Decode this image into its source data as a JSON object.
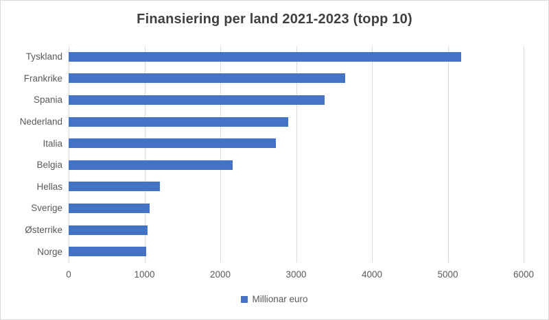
{
  "window": {
    "background": "#ffffff",
    "border_color": "#d9d9d9"
  },
  "chart_data": {
    "type": "bar",
    "orientation": "horizontal",
    "title": "Finansiering per land 2021-2023 (topp 10)",
    "categories": [
      "Tyskland",
      "Frankrike",
      "Spania",
      "Nederland",
      "Italia",
      "Belgia",
      "Hellas",
      "Sverige",
      "Østerrike",
      "Norge"
    ],
    "series": [
      {
        "name": "Millionar euro",
        "values": [
          5180,
          3650,
          3380,
          2900,
          2730,
          2160,
          1200,
          1070,
          1040,
          1020
        ]
      }
    ],
    "xlabel": "",
    "ylabel": "",
    "xlim": [
      0,
      6000
    ],
    "x_ticks": [
      0,
      1000,
      2000,
      3000,
      4000,
      5000,
      6000
    ],
    "grid": true,
    "legend_position": "bottom",
    "legend_label": "Millionar euro",
    "colors": {
      "bar": "#4472c4",
      "gridline": "#d9d9d9",
      "title_text": "#404040",
      "axis_text": "#595959",
      "legend_text": "#595959"
    }
  }
}
